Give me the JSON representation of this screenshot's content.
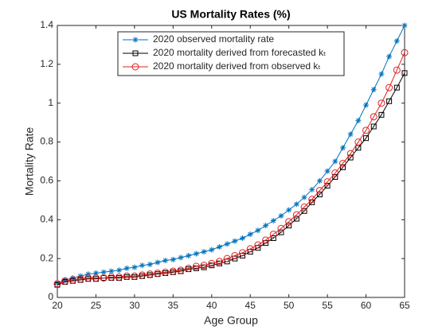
{
  "chart_data": {
    "type": "line",
    "title": "US Mortality Rates (%)",
    "x_label": "Age Group",
    "y_label": "Mortality Rate",
    "x": [
      20,
      21,
      22,
      23,
      24,
      25,
      26,
      27,
      28,
      29,
      30,
      31,
      32,
      33,
      34,
      35,
      36,
      37,
      38,
      39,
      40,
      41,
      42,
      43,
      44,
      45,
      46,
      47,
      48,
      49,
      50,
      51,
      52,
      53,
      54,
      55,
      56,
      57,
      58,
      59,
      60,
      61,
      62,
      63,
      64,
      65
    ],
    "series": [
      {
        "name": "2020 observed mortality rate",
        "color": "#0072bd",
        "marker": "asterisk",
        "values": [
          0.075,
          0.09,
          0.1,
          0.11,
          0.12,
          0.125,
          0.13,
          0.135,
          0.14,
          0.15,
          0.155,
          0.165,
          0.17,
          0.18,
          0.19,
          0.195,
          0.205,
          0.215,
          0.225,
          0.235,
          0.245,
          0.26,
          0.275,
          0.29,
          0.305,
          0.325,
          0.345,
          0.37,
          0.395,
          0.42,
          0.45,
          0.48,
          0.515,
          0.555,
          0.6,
          0.65,
          0.7,
          0.77,
          0.84,
          0.91,
          0.99,
          1.07,
          1.15,
          1.24,
          1.32,
          1.4
        ]
      },
      {
        "name": "2020 mortality derived from forecasted kₜ",
        "color": "#000000",
        "marker": "square",
        "values": [
          0.065,
          0.08,
          0.085,
          0.09,
          0.095,
          0.095,
          0.1,
          0.1,
          0.1,
          0.105,
          0.105,
          0.11,
          0.115,
          0.12,
          0.125,
          0.13,
          0.135,
          0.145,
          0.15,
          0.155,
          0.165,
          0.175,
          0.185,
          0.2,
          0.215,
          0.235,
          0.255,
          0.28,
          0.305,
          0.335,
          0.37,
          0.405,
          0.445,
          0.49,
          0.53,
          0.575,
          0.62,
          0.67,
          0.72,
          0.77,
          0.82,
          0.88,
          0.94,
          1.01,
          1.08,
          1.155
        ]
      },
      {
        "name": "2020 mortality derived from observed kₜ",
        "color": "#e02020",
        "marker": "circle",
        "values": [
          0.07,
          0.085,
          0.09,
          0.095,
          0.1,
          0.1,
          0.1,
          0.105,
          0.105,
          0.11,
          0.11,
          0.115,
          0.12,
          0.125,
          0.13,
          0.135,
          0.14,
          0.15,
          0.16,
          0.165,
          0.175,
          0.185,
          0.2,
          0.215,
          0.23,
          0.25,
          0.27,
          0.295,
          0.325,
          0.355,
          0.39,
          0.425,
          0.465,
          0.505,
          0.55,
          0.595,
          0.64,
          0.69,
          0.74,
          0.8,
          0.86,
          0.93,
          1.0,
          1.08,
          1.17,
          1.26
        ]
      }
    ],
    "xlim": [
      20,
      65
    ],
    "xticks": [
      20,
      25,
      30,
      35,
      40,
      45,
      50,
      55,
      60,
      65
    ],
    "ylim": [
      0,
      1.4
    ],
    "yticks": [
      0,
      0.2,
      0.4,
      0.6,
      0.8,
      1,
      1.2,
      1.4
    ],
    "legend": "top-left"
  }
}
